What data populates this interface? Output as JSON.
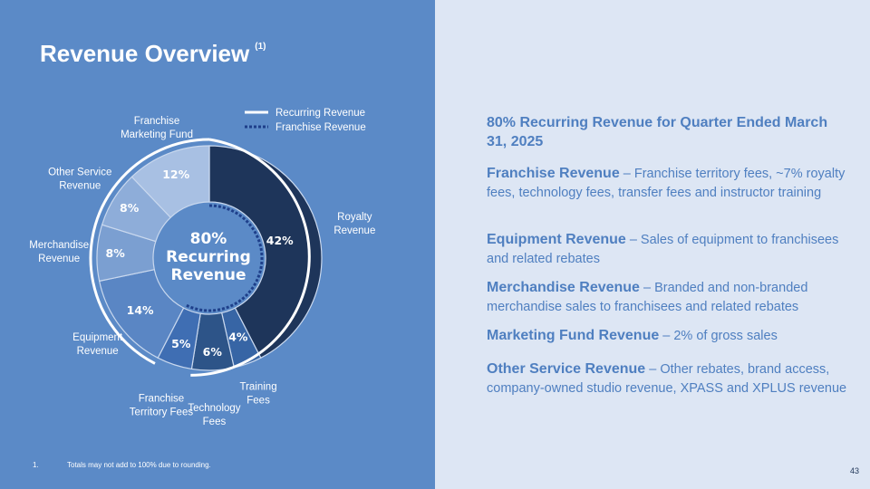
{
  "title": "Revenue Overview",
  "title_superscript": "(1)",
  "legend": {
    "recurring": "Recurring Revenue",
    "franchise": "Franchise Revenue"
  },
  "chart_data": {
    "type": "pie",
    "style": "donut",
    "title": "Revenue Overview",
    "center_text": [
      "80%",
      "Recurring",
      "Revenue"
    ],
    "categories": [
      "Royalty Revenue",
      "Training Fees",
      "Technology Fees",
      "Franchise Territory Fees",
      "Equipment Revenue",
      "Merchandise Revenue",
      "Other Service Revenue",
      "Franchise Marketing Fund"
    ],
    "category_lines": [
      [
        "Royalty",
        "Revenue"
      ],
      [
        "Training",
        "Fees"
      ],
      [
        "Technology",
        "Fees"
      ],
      [
        "Franchise",
        "Territory Fees"
      ],
      [
        "Equipment",
        "Revenue"
      ],
      [
        "Merchandise",
        "Revenue"
      ],
      [
        "Other Service",
        "Revenue"
      ],
      [
        "Franchise",
        "Marketing Fund"
      ]
    ],
    "values": [
      42,
      4,
      6,
      5,
      14,
      8,
      8,
      12
    ],
    "value_labels": [
      "42%",
      "4%",
      "6%",
      "5%",
      "14%",
      "8%",
      "8%",
      "12%"
    ],
    "colors": [
      "#1e355a",
      "#3765a5",
      "#2d5488",
      "#3f6eb3",
      "#5a86c4",
      "#7b9fd1",
      "#8eadd9",
      "#a8c0e3"
    ],
    "recurring_share": 80,
    "legend_position": "top-right"
  },
  "headline": "80% Recurring Revenue for Quarter Ended March 31, 2025",
  "descriptions": [
    {
      "bold": "Franchise Revenue",
      "text": " – Franchise territory fees, ~7% royalty fees, technology fees, transfer fees and instructor training"
    },
    {
      "bold": "Equipment Revenue",
      "text": " – Sales of equipment to franchisees and related rebates"
    },
    {
      "bold": "Merchandise Revenue",
      "text": " – Branded and non-branded merchandise sales to franchisees and related rebates"
    },
    {
      "bold": "Marketing Fund Revenue",
      "text": " – 2% of gross sales"
    },
    {
      "bold": "Other Service Revenue",
      "text": " – Other rebates, brand access, company-owned studio revenue, XPASS and XPLUS revenue"
    }
  ],
  "footnote": {
    "number": "1.",
    "text": "Totals may not add to 100% due to rounding."
  },
  "page_number": "43"
}
